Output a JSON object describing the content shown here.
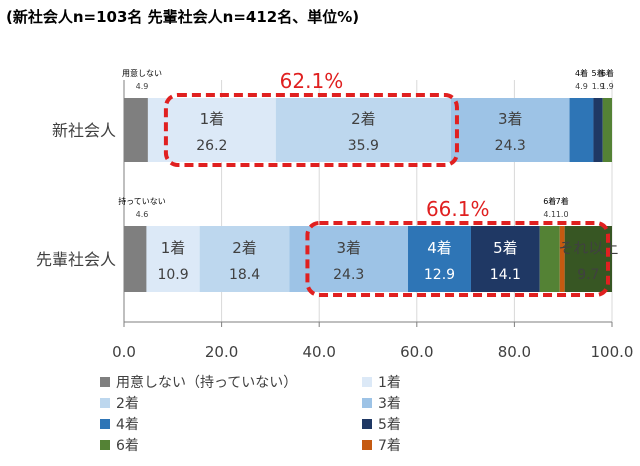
{
  "title": "(新社会人n=103名  先輩社会人n=412名、単位%)",
  "chart_data": {
    "type": "bar",
    "orientation": "horizontal",
    "stacked": true,
    "categories": [
      "新社会人",
      "先輩社会人"
    ],
    "xlim": [
      0,
      100
    ],
    "xticks": [
      "0.0",
      "20.0",
      "40.0",
      "60.0",
      "80.0",
      "100.0"
    ],
    "grid": true,
    "legend_position": "bottom",
    "series": [
      {
        "name": "用意しない（持っていない）",
        "color": "#7f7f7f",
        "values": [
          4.9,
          4.6
        ],
        "labels": [
          "用意しない\n4.9",
          "持っていない\n4.6"
        ]
      },
      {
        "name": "1着",
        "color": "#dce9f7",
        "values": [
          26.2,
          10.9
        ],
        "labels": [
          "1着\n26.2",
          "1着\n10.9"
        ]
      },
      {
        "name": "2着",
        "color": "#bdd7ee",
        "values": [
          35.9,
          18.4
        ],
        "labels": [
          "2着\n35.9",
          "2着\n18.4"
        ]
      },
      {
        "name": "3着",
        "color": "#9dc3e6",
        "values": [
          24.3,
          24.3
        ],
        "labels": [
          "3着\n24.3",
          "3着\n24.3"
        ]
      },
      {
        "name": "4着",
        "color": "#2e75b6",
        "values": [
          4.9,
          12.9
        ],
        "labels": [
          "4着\n4.9",
          "4着\n12.9"
        ]
      },
      {
        "name": "5着",
        "color": "#1f3864",
        "values": [
          1.9,
          14.1
        ],
        "labels": [
          "5着\n1.9",
          "5着\n14.1"
        ]
      },
      {
        "name": "6着",
        "color": "#548235",
        "values": [
          1.9,
          4.1
        ],
        "labels": [
          "6着\n1.9",
          "6着\n4.1"
        ]
      },
      {
        "name": "7着",
        "color": "#c55a11",
        "values": [
          0,
          1.0
        ],
        "labels": [
          "",
          "7着\n1.0"
        ]
      },
      {
        "name": "それ以上",
        "color": "#375623",
        "values": [
          0,
          9.7
        ],
        "labels": [
          "",
          "それ以上\n9.7"
        ]
      }
    ],
    "annotations": [
      {
        "row": 0,
        "from_series": 1,
        "to_series": 2,
        "text": "62.1%",
        "color": "#e02020"
      },
      {
        "row": 1,
        "from_series": 3,
        "to_series": 8,
        "text": "66.1%",
        "color": "#e02020"
      }
    ]
  },
  "legend_items": [
    "用意しない（持っていない）",
    "1着",
    "2着",
    "3着",
    "4着",
    "5着",
    "6着",
    "7着"
  ]
}
